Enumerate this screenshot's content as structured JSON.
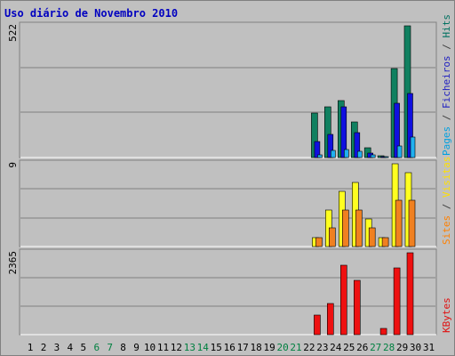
{
  "chart_data": {
    "type": "bar",
    "title": "Uso diário de Novembro 2010",
    "days": [
      "1",
      "2",
      "3",
      "4",
      "5",
      "6",
      "7",
      "8",
      "9",
      "10",
      "11",
      "12",
      "13",
      "14",
      "15",
      "16",
      "17",
      "18",
      "19",
      "20",
      "21",
      "22",
      "23",
      "24",
      "25",
      "26",
      "27",
      "28",
      "29",
      "30",
      "31"
    ],
    "weekend_days": [
      "6",
      "7",
      "13",
      "14",
      "20",
      "21",
      "27",
      "28"
    ],
    "panels": [
      {
        "id": "hits",
        "max_label": "522",
        "ymax": 522,
        "legend": [
          {
            "text": "Pages",
            "color": "#00a0e0"
          },
          {
            "text": " / ",
            "color": "#404040"
          },
          {
            "text": "Ficheiros",
            "color": "#2020c0"
          },
          {
            "text": " / ",
            "color": "#404040"
          },
          {
            "text": "Hits",
            "color": "#007060"
          }
        ],
        "series": [
          {
            "name": "Hits",
            "color": "#108060",
            "values": [
              0,
              0,
              0,
              0,
              0,
              0,
              0,
              0,
              0,
              0,
              0,
              0,
              0,
              0,
              0,
              0,
              0,
              0,
              0,
              0,
              0,
              0,
              175,
              200,
              225,
              140,
              40,
              8,
              353,
              522,
              0
            ]
          },
          {
            "name": "Ficheiros",
            "color": "#1010e0",
            "values": [
              0,
              0,
              0,
              0,
              0,
              0,
              0,
              0,
              0,
              0,
              0,
              0,
              0,
              0,
              0,
              0,
              0,
              0,
              0,
              0,
              0,
              0,
              62,
              90,
              200,
              100,
              18,
              5,
              215,
              255,
              0
            ]
          },
          {
            "name": "Pages",
            "color": "#20b0f0",
            "values": [
              0,
              0,
              0,
              0,
              0,
              0,
              0,
              0,
              0,
              0,
              0,
              0,
              0,
              0,
              0,
              0,
              0,
              0,
              0,
              0,
              0,
              0,
              12,
              28,
              32,
              26,
              12,
              2,
              45,
              82,
              0
            ]
          }
        ]
      },
      {
        "id": "visits",
        "max_label": "9",
        "ymax": 9,
        "legend": [
          {
            "text": "Sites",
            "color": "#ff8000"
          },
          {
            "text": " / ",
            "color": "#404040"
          },
          {
            "text": "Visitas",
            "color": "#ffe000"
          }
        ],
        "series": [
          {
            "name": "Visitas",
            "color": "#ffff20",
            "values": [
              0,
              0,
              0,
              0,
              0,
              0,
              0,
              0,
              0,
              0,
              0,
              0,
              0,
              0,
              0,
              0,
              0,
              0,
              0,
              0,
              0,
              0,
              1,
              4,
              6,
              7,
              3,
              1,
              9,
              8,
              0
            ]
          },
          {
            "name": "Sites",
            "color": "#f08020",
            "values": [
              0,
              0,
              0,
              0,
              0,
              0,
              0,
              0,
              0,
              0,
              0,
              0,
              0,
              0,
              0,
              0,
              0,
              0,
              0,
              0,
              0,
              0,
              1,
              2,
              4,
              4,
              2,
              1,
              5,
              5,
              0
            ]
          }
        ]
      },
      {
        "id": "kbytes",
        "max_label": "2365",
        "ymax": 2365,
        "legend": [
          {
            "text": "KBytes",
            "color": "#e01010"
          }
        ],
        "series": [
          {
            "name": "KBytes",
            "color": "#ee1010",
            "values": [
              0,
              0,
              0,
              0,
              0,
              0,
              0,
              0,
              0,
              0,
              0,
              0,
              0,
              0,
              0,
              0,
              0,
              0,
              0,
              0,
              0,
              0,
              570,
              890,
              2000,
              1560,
              0,
              190,
              1930,
              2365,
              0
            ]
          }
        ]
      }
    ],
    "grid": true
  }
}
